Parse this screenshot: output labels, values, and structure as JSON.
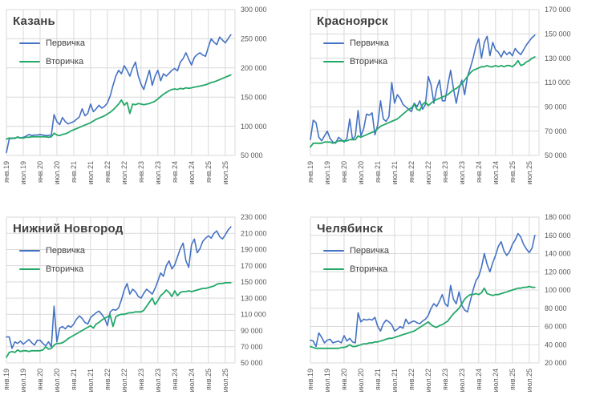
{
  "x_tick_labels": [
    "янв.19",
    "июл.19",
    "янв.20",
    "июл.20",
    "янв.21",
    "июл.21",
    "янв.22",
    "июл.22",
    "янв.23",
    "июл.23",
    "янв.24",
    "июл.24",
    "янв.25",
    "июл.25"
  ],
  "colors": {
    "primary_series": "#4472c4",
    "secondary_series": "#23a869",
    "grid": "#d9d9d9",
    "tick_text": "#595959",
    "title_text": "#3f3f3f"
  },
  "chart_data": [
    {
      "type": "line",
      "title": "Казань",
      "ylim": [
        50000,
        300000
      ],
      "y_step": 50000,
      "legend_position": "top-left-inside",
      "grid": true,
      "series": [
        {
          "name": "Первичка",
          "color": "#4472c4",
          "values": [
            55000,
            78000,
            80000,
            79000,
            82000,
            80000,
            81000,
            83000,
            86000,
            84000,
            85000,
            85000,
            86000,
            85000,
            84000,
            84000,
            85000,
            120000,
            108000,
            103000,
            115000,
            108000,
            104000,
            106000,
            108000,
            112000,
            116000,
            130000,
            118000,
            122000,
            138000,
            125000,
            130000,
            136000,
            131000,
            134000,
            140000,
            152000,
            170000,
            186000,
            196000,
            190000,
            204000,
            196000,
            186000,
            200000,
            210000,
            186000,
            172000,
            163000,
            180000,
            196000,
            170000,
            186000,
            196000,
            178000,
            190000,
            186000,
            191000,
            196000,
            199000,
            195000,
            210000,
            216000,
            226000,
            215000,
            205000,
            218000,
            223000,
            226000,
            222000,
            220000,
            236000,
            250000,
            244000,
            240000,
            253000,
            248000,
            243000,
            250000,
            257000
          ]
        },
        {
          "name": "Вторичка",
          "color": "#23a869",
          "values": [
            78000,
            80000,
            79000,
            80000,
            81000,
            80000,
            80000,
            81000,
            81000,
            82000,
            82000,
            82000,
            82000,
            82000,
            82000,
            81000,
            82000,
            88000,
            85000,
            84000,
            86000,
            87000,
            89000,
            92000,
            94000,
            96000,
            98000,
            100000,
            102000,
            104000,
            106000,
            109000,
            112000,
            114000,
            116000,
            118000,
            121000,
            124000,
            128000,
            133000,
            138000,
            145000,
            136000,
            141000,
            122000,
            138000,
            137000,
            139000,
            138000,
            137000,
            138000,
            139000,
            141000,
            143000,
            147000,
            151000,
            155000,
            158000,
            161000,
            163000,
            164000,
            163000,
            165000,
            164000,
            166000,
            165000,
            166000,
            167000,
            168000,
            169000,
            170000,
            171000,
            173000,
            175000,
            176000,
            178000,
            180000,
            182000,
            184000,
            186000,
            188000
          ]
        }
      ]
    },
    {
      "type": "line",
      "title": "Красноярск",
      "ylim": [
        50000,
        170000
      ],
      "y_step": 20000,
      "legend_position": "top-left-inside",
      "grid": true,
      "series": [
        {
          "name": "Первичка",
          "color": "#4472c4",
          "values": [
            63000,
            79000,
            77000,
            65000,
            62000,
            66000,
            70000,
            64000,
            61000,
            60000,
            65000,
            63000,
            61000,
            64000,
            80000,
            63000,
            66000,
            87000,
            66000,
            72000,
            84000,
            83000,
            85000,
            67000,
            75000,
            95000,
            80000,
            78000,
            82000,
            110000,
            93000,
            100000,
            97000,
            92000,
            90000,
            88000,
            86000,
            93000,
            90000,
            95000,
            88000,
            92000,
            115000,
            108000,
            93000,
            105000,
            112000,
            95000,
            95000,
            108000,
            120000,
            105000,
            93000,
            105000,
            112000,
            100000,
            115000,
            122000,
            130000,
            140000,
            146000,
            130000,
            143000,
            148000,
            132000,
            143000,
            137000,
            135000,
            131000,
            136000,
            133000,
            135000,
            132000,
            138000,
            135000,
            133000,
            137000,
            141000,
            144000,
            147000,
            149000
          ]
        },
        {
          "name": "Вторичка",
          "color": "#23a869",
          "values": [
            57000,
            60000,
            60000,
            60000,
            60000,
            61000,
            61000,
            61000,
            60000,
            61000,
            62000,
            62000,
            62000,
            62000,
            63000,
            63000,
            63000,
            66000,
            65000,
            66000,
            67000,
            68000,
            69000,
            70000,
            72000,
            74000,
            75000,
            76000,
            77000,
            78000,
            79000,
            80000,
            82000,
            84000,
            86000,
            88000,
            89000,
            92000,
            88000,
            87000,
            92000,
            94000,
            91000,
            93000,
            95000,
            96000,
            97000,
            98000,
            99000,
            100000,
            102000,
            104000,
            105000,
            107000,
            109000,
            112000,
            115000,
            118000,
            120000,
            121000,
            122000,
            123000,
            123000,
            124000,
            123000,
            123000,
            124000,
            123000,
            124000,
            123000,
            124000,
            124000,
            123000,
            125000,
            128000,
            124000,
            125000,
            127000,
            128000,
            130000,
            131000
          ]
        }
      ]
    },
    {
      "type": "line",
      "title": "Нижний Новгород",
      "ylim": [
        50000,
        230000
      ],
      "y_step": 20000,
      "legend_position": "top-left-inside",
      "grid": true,
      "series": [
        {
          "name": "Первичка",
          "color": "#4472c4",
          "values": [
            82000,
            82000,
            68000,
            76000,
            74000,
            77000,
            73000,
            76000,
            79000,
            75000,
            72000,
            78000,
            78000,
            74000,
            71000,
            76000,
            70000,
            120000,
            76000,
            93000,
            95000,
            92000,
            96000,
            94000,
            98000,
            104000,
            108000,
            105000,
            100000,
            98000,
            106000,
            109000,
            112000,
            114000,
            110000,
            105000,
            96000,
            113000,
            116000,
            115000,
            118000,
            128000,
            140000,
            148000,
            135000,
            141000,
            138000,
            132000,
            130000,
            136000,
            141000,
            138000,
            135000,
            142000,
            151000,
            161000,
            157000,
            170000,
            176000,
            166000,
            171000,
            181000,
            191000,
            198000,
            176000,
            168000,
            196000,
            203000,
            186000,
            191000,
            200000,
            204000,
            207000,
            204000,
            210000,
            213000,
            206000,
            203000,
            208000,
            214000,
            218000
          ]
        },
        {
          "name": "Вторичка",
          "color": "#23a869",
          "values": [
            57000,
            63000,
            64000,
            63000,
            66000,
            64000,
            65000,
            65000,
            64000,
            65000,
            65000,
            65000,
            65000,
            66000,
            70000,
            67000,
            68000,
            72000,
            74000,
            74000,
            75000,
            77000,
            80000,
            82000,
            84000,
            86000,
            88000,
            90000,
            92000,
            94000,
            96000,
            93000,
            98000,
            100000,
            103000,
            105000,
            107000,
            109000,
            95000,
            107000,
            109000,
            110000,
            110000,
            111000,
            112000,
            112000,
            113000,
            113000,
            113000,
            115000,
            120000,
            125000,
            130000,
            122000,
            127000,
            133000,
            136000,
            140000,
            137000,
            132000,
            139000,
            133000,
            137000,
            138000,
            138000,
            139000,
            138000,
            139000,
            140000,
            141000,
            142000,
            142000,
            143000,
            144000,
            145000,
            147000,
            148000,
            148000,
            149000,
            149000,
            149000
          ]
        }
      ]
    },
    {
      "type": "line",
      "title": "Челябинск",
      "ylim": [
        20000,
        180000
      ],
      "y_step": 20000,
      "legend_position": "top-left-inside",
      "grid": true,
      "series": [
        {
          "name": "Первичка",
          "color": "#4472c4",
          "values": [
            45000,
            44000,
            38000,
            53000,
            48000,
            42000,
            45000,
            46000,
            42000,
            43000,
            44000,
            42000,
            50000,
            44000,
            47000,
            43000,
            42000,
            75000,
            65000,
            68000,
            67000,
            68000,
            67000,
            70000,
            60000,
            55000,
            63000,
            67000,
            65000,
            62000,
            55000,
            57000,
            60000,
            58000,
            68000,
            63000,
            65000,
            66000,
            64000,
            63000,
            66000,
            68000,
            72000,
            80000,
            85000,
            82000,
            88000,
            95000,
            85000,
            82000,
            105000,
            90000,
            85000,
            98000,
            83000,
            78000,
            76000,
            88000,
            100000,
            110000,
            115000,
            125000,
            140000,
            128000,
            120000,
            130000,
            138000,
            148000,
            153000,
            143000,
            138000,
            142000,
            150000,
            155000,
            162000,
            158000,
            150000,
            145000,
            141000,
            146000,
            160000
          ]
        },
        {
          "name": "Вторичка",
          "color": "#23a869",
          "values": [
            38000,
            37000,
            36000,
            36000,
            36000,
            36000,
            36000,
            36000,
            36000,
            36000,
            36000,
            37000,
            37000,
            38000,
            40000,
            38000,
            38000,
            39000,
            40000,
            41000,
            41000,
            42000,
            42000,
            43000,
            43000,
            44000,
            45000,
            46000,
            47000,
            47000,
            48000,
            49000,
            50000,
            51000,
            52000,
            53000,
            54000,
            55000,
            57000,
            59000,
            61000,
            63000,
            65000,
            62000,
            60000,
            59000,
            61000,
            62000,
            64000,
            66000,
            70000,
            74000,
            77000,
            80000,
            85000,
            90000,
            93000,
            95000,
            95000,
            96000,
            95000,
            97000,
            102000,
            96000,
            95000,
            94000,
            95000,
            95000,
            96000,
            97000,
            98000,
            99000,
            100000,
            101000,
            102000,
            102000,
            103000,
            103000,
            104000,
            103000,
            103000
          ]
        }
      ]
    }
  ]
}
